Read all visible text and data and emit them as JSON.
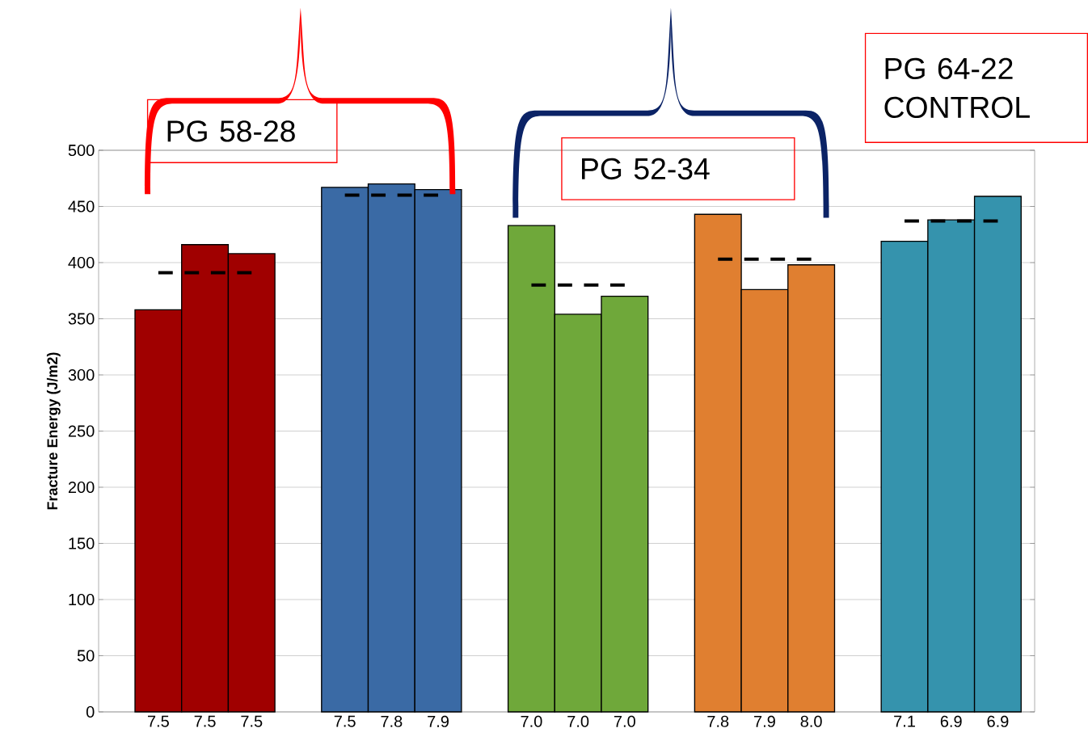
{
  "chart_data": {
    "type": "bar",
    "ylabel": "Fracture Energy (J/m2)",
    "categories": [
      "7.5",
      "7.5",
      "7.5",
      null,
      "7.5",
      "7.8",
      "7.9",
      null,
      "7.0",
      "7.0",
      "7.0",
      null,
      "7.8",
      "7.9",
      "8.0",
      null,
      "7.1",
      "6.9",
      "6.9"
    ],
    "series": [
      {
        "values": [
          358,
          416,
          408,
          null,
          467,
          470,
          465,
          null,
          433,
          354,
          370,
          null,
          443,
          376,
          398,
          null,
          419,
          438,
          459
        ],
        "colors": [
          "#a00000",
          "#a00000",
          "#a00000",
          null,
          "#3a6aa5",
          "#3a6aa5",
          "#3a6aa5",
          null,
          "#6fa83a",
          "#6fa83a",
          "#6fa83a",
          null,
          "#e07f30",
          "#e07f30",
          "#e07f30",
          null,
          "#3593ad",
          "#3593ad",
          "#3593ad"
        ]
      },
      {
        "type": "line",
        "color": "#000000",
        "line_style": "dashed",
        "marker": "none",
        "values": [
          391,
          391,
          391,
          null,
          460,
          460,
          460,
          null,
          380,
          380,
          380,
          null,
          403,
          403,
          403,
          null,
          437,
          437,
          437
        ]
      }
    ],
    "ylim": [
      0,
      500
    ],
    "yticks": [
      0,
      50,
      100,
      150,
      200,
      250,
      300,
      350,
      400,
      450,
      500
    ],
    "grid": "y",
    "annotations": [
      "PG 58-28",
      "PG 52-34",
      "PG 64-22 CONTROL"
    ]
  }
}
